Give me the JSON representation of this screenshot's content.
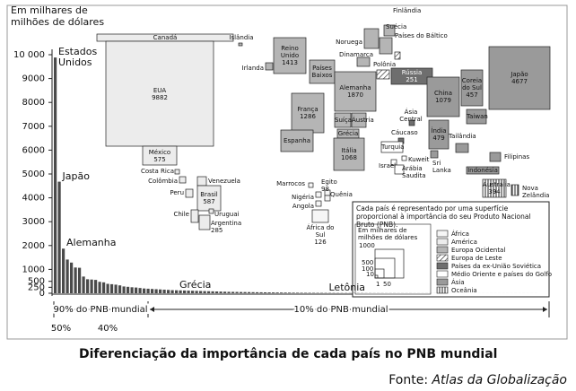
{
  "chart_data": {
    "type": "bar",
    "ylabel": [
      "Em milhares de",
      "milhões de dólares"
    ],
    "categories": [
      "Estados Unidos",
      "Japão",
      "Alemanha",
      null,
      null,
      null,
      null,
      null,
      null,
      null,
      null,
      null,
      null,
      null,
      null,
      null,
      null,
      null,
      null,
      null,
      null,
      null,
      null,
      null,
      null,
      null,
      null,
      null,
      null,
      null,
      "Grécia",
      null,
      null,
      null,
      null,
      null,
      null,
      null,
      null,
      null,
      null,
      null,
      null,
      null,
      null,
      null,
      null,
      null,
      null,
      null,
      null,
      null,
      null,
      null,
      null,
      null,
      null,
      null,
      null,
      null,
      null,
      null,
      null,
      null,
      null,
      null,
      null,
      "Letônia",
      null,
      null,
      null,
      null,
      null,
      null,
      null,
      null,
      null,
      null,
      null,
      null,
      null,
      null,
      null,
      null,
      null,
      null,
      null,
      null,
      null,
      null,
      null,
      null,
      null,
      null,
      null,
      null,
      null,
      null,
      null,
      null,
      null,
      null,
      null,
      null,
      null,
      null,
      null,
      null,
      null,
      null,
      null,
      null,
      null,
      null,
      null,
      null,
      null,
      null,
      null,
      null
    ],
    "values": [
      9882,
      4677,
      1870,
      1413,
      1286,
      1079,
      1068,
      700,
      587,
      575,
      560,
      479,
      457,
      394,
      380,
      360,
      330,
      285,
      270,
      251,
      240,
      220,
      200,
      190,
      180,
      170,
      160,
      150,
      140,
      130,
      125,
      120,
      115,
      110,
      105,
      100,
      95,
      90,
      85,
      80,
      75,
      70,
      65,
      60,
      58,
      55,
      52,
      50,
      48,
      45,
      42,
      40,
      38,
      36,
      34,
      32,
      30,
      28,
      26,
      24,
      22,
      20,
      19,
      18,
      17,
      16,
      15,
      14,
      13,
      12,
      11,
      10,
      10,
      9,
      9,
      8,
      8,
      7,
      7,
      6,
      6,
      6,
      5,
      5,
      5,
      4,
      4,
      4,
      4,
      3,
      3,
      3,
      3,
      3,
      2,
      2,
      2,
      2,
      2,
      2,
      2,
      1,
      1,
      1,
      1,
      1,
      1,
      1,
      1,
      1,
      1,
      1,
      1,
      1,
      1,
      1,
      1,
      1,
      1,
      1
    ],
    "color": "#4a4a4a",
    "ylim": [
      0,
      10000
    ],
    "yticks": [
      0,
      250,
      500,
      1000,
      2000,
      3000,
      4000,
      5000,
      6000,
      7000,
      8000,
      9000,
      {
        "value": 10000,
        "label": "10 000"
      }
    ],
    "annotations": {
      "share_90": "90% do PNB mundial",
      "share_10": "10% do PNB mundial",
      "pct_50": "50%",
      "pct_40": "40%"
    }
  },
  "cartogram": {
    "countries": [
      {
        "name": "Canadá"
      },
      {
        "name": "EUA",
        "value": 9882
      },
      {
        "name": "México",
        "value": 575
      },
      {
        "name": "Costa Rica"
      },
      {
        "name": "Colômbia"
      },
      {
        "name": "Venezuela"
      },
      {
        "name": "Peru"
      },
      {
        "name": "Brasil",
        "value": 587
      },
      {
        "name": "Chile"
      },
      {
        "name": "Uruguai"
      },
      {
        "name": "Argentina",
        "value": 285
      },
      {
        "name": "Islândia"
      },
      {
        "name": "Irlanda"
      },
      {
        "name": "Reino Unido",
        "value": 1413
      },
      {
        "name": "Noruega"
      },
      {
        "name": "Finlândia"
      },
      {
        "name": "Suécia"
      },
      {
        "name": "Países do Báltico"
      },
      {
        "name": "Dinamarca"
      },
      {
        "name": "Polônia"
      },
      {
        "name": "Países Baixos"
      },
      {
        "name": "Alemanha",
        "value": 1870
      },
      {
        "name": "França",
        "value": 1286
      },
      {
        "name": "Suíça"
      },
      {
        "name": "Áustria"
      },
      {
        "name": "Espanha"
      },
      {
        "name": "Grécia"
      },
      {
        "name": "Itália",
        "value": 1068
      },
      {
        "name": "Rússia",
        "value": 251
      },
      {
        "name": "Ásia Central"
      },
      {
        "name": "Cáucaso"
      },
      {
        "name": "Turquia"
      },
      {
        "name": "Israel"
      },
      {
        "name": "Kuweit"
      },
      {
        "name": "Arábia Saudita"
      },
      {
        "name": "Egito",
        "value": 98
      },
      {
        "name": "Marrocos"
      },
      {
        "name": "Nigéria"
      },
      {
        "name": "Quênia"
      },
      {
        "name": "Angola"
      },
      {
        "name": "África do Sul",
        "value": 126
      },
      {
        "name": "Índia",
        "value": 479
      },
      {
        "name": "China",
        "value": 1079
      },
      {
        "name": "Coreia do Sul",
        "value": 457
      },
      {
        "name": "Japão",
        "value": 4677
      },
      {
        "name": "Taiwan"
      },
      {
        "name": "Tailândia"
      },
      {
        "name": "Sri Lanka"
      },
      {
        "name": "Indonésia"
      },
      {
        "name": "Filipinas"
      },
      {
        "name": "Austrália",
        "value": 394
      },
      {
        "name": "Nova Zelândia"
      }
    ],
    "legend": {
      "title": "Cada país é representado por uma superfície proporcional à importância do seu Produto Nacional Bruto (PNB).",
      "scale_label": "Em milhares de milhões de dólares",
      "scale_values": [
        1000,
        500,
        100,
        10,
        1,
        50
      ],
      "regions": [
        "África",
        "América",
        "Europa Ocidental",
        "Europa de Leste",
        "Países da ex-União Soviética",
        "Médio Oriente e países do Golfo",
        "Ásia",
        "Oceânia"
      ]
    }
  },
  "caption": "Diferenciação da importância de cada país no PNB mundial",
  "source_prefix": "Fonte:",
  "source": "Atlas da Globalização"
}
